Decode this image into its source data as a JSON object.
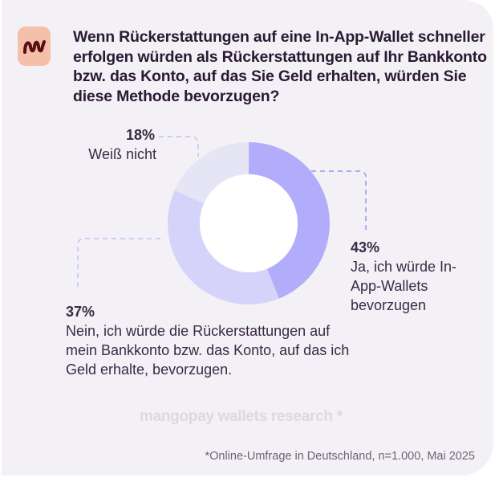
{
  "title": "Wenn Rückerstattungen auf eine In-App-Wallet schneller erfolgen würden als Rückerstattungen auf Ihr Bankkonto bzw. das Konto, auf das Sie Geld erhalten, würden Sie diese Methode bevorzugen?",
  "logo_text": "m",
  "watermark": "mangopay wallets research *",
  "footnote": "*Online-Umfrage in Deutschland, n=1.000, Mai 2025",
  "chart_data": {
    "type": "pie",
    "donut": true,
    "title": "Wenn Rückerstattungen auf eine In-App-Wallet schneller erfolgen würden als Rückerstattungen auf Ihr Bankkonto bzw. das Konto, auf das Sie Geld erhalten, würden Sie diese Methode bevorzugen?",
    "slices": [
      {
        "label": "Ja, ich würde In-App-Wallets bevorzugen",
        "value": 43,
        "display": "43%",
        "color": "#b1adfb"
      },
      {
        "label": "Nein, ich würde die Rückerstattungen auf mein Bankkonto bzw. das Konto, auf das ich Geld erhalte, bevorzugen.",
        "value": 37,
        "display": "37%",
        "color": "#d5d3fa"
      },
      {
        "label": "Weiß nicht",
        "value": 18,
        "display": "18%",
        "color": "#e6e5f6"
      }
    ]
  }
}
